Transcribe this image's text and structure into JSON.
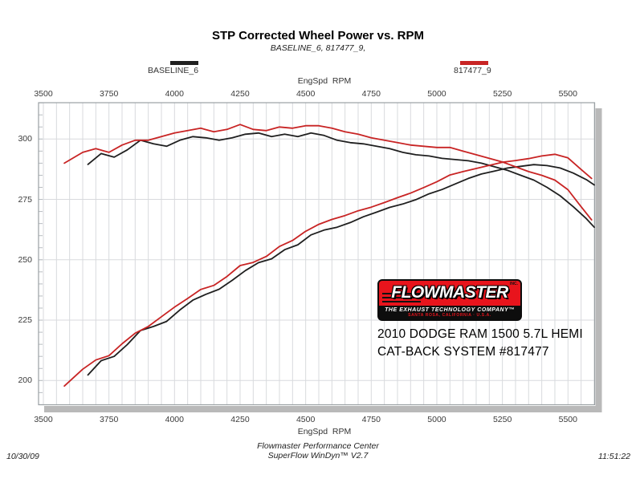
{
  "header": {
    "title": "STP Corrected Wheel Power vs. RPM",
    "subtitle": "BASELINE_6, 817477_9,"
  },
  "legend": [
    {
      "label": "BASELINE_6",
      "color": "#1f1f1f"
    },
    {
      "label": "817477_9",
      "color": "#c82424"
    }
  ],
  "axis": {
    "x_label": "EngSpd  RPM",
    "x_ticks": [
      3500,
      3750,
      4000,
      4250,
      4500,
      4750,
      5000,
      5250,
      5500
    ],
    "y_ticks": [
      200,
      225,
      250,
      275,
      300
    ]
  },
  "annotation": {
    "vehicle_line1": "2010 DODGE RAM 1500 5.7L HEMI",
    "vehicle_line2": "CAT-BACK SYSTEM #817477"
  },
  "logo": {
    "brand": "FLOWMASTER",
    "inc": "INC.",
    "tagline": "THE EXHAUST TECHNOLOGY COMPANY™",
    "location": "SANTA ROSA, CALIFORNIA  ·  U.S.A.",
    "red": "#e8141c"
  },
  "footer": {
    "line1": "Flowmaster Performance Center",
    "line2": "SuperFlow WinDyn™ V2.7",
    "date": "10/30/09",
    "time": "11:51:22"
  },
  "chart_data": {
    "type": "line",
    "title": "STP Corrected Wheel Power vs. RPM",
    "xlabel": "EngSpd RPM",
    "ylabel": "",
    "x_range": [
      3482,
      5602
    ],
    "y_range": [
      190,
      315
    ],
    "grid": {
      "x_start": 3500,
      "x_end": 5600,
      "x_step": 50,
      "y_step": 25,
      "y_minor_step": 5
    },
    "legend_position": "top",
    "colors": {
      "grid": "#d8dadd",
      "box": "#9aa0a4",
      "shadow": "#b9b9b9"
    },
    "series": [
      {
        "name": "BASELINE_6",
        "measure": "torque",
        "color": "#1f1f1f",
        "points": [
          [
            3670,
            289.5
          ],
          [
            3720,
            294
          ],
          [
            3770,
            292.5
          ],
          [
            3820,
            295.5
          ],
          [
            3870,
            299.5
          ],
          [
            3920,
            298
          ],
          [
            3970,
            297
          ],
          [
            4020,
            299.5
          ],
          [
            4070,
            301
          ],
          [
            4120,
            300.5
          ],
          [
            4170,
            299.5
          ],
          [
            4220,
            300.5
          ],
          [
            4270,
            302
          ],
          [
            4320,
            302.5
          ],
          [
            4370,
            301
          ],
          [
            4420,
            302
          ],
          [
            4470,
            301
          ],
          [
            4520,
            302.5
          ],
          [
            4570,
            301.5
          ],
          [
            4620,
            299.5
          ],
          [
            4670,
            298.5
          ],
          [
            4720,
            298
          ],
          [
            4770,
            297
          ],
          [
            4820,
            296
          ],
          [
            4870,
            294.5
          ],
          [
            4920,
            293.5
          ],
          [
            4970,
            293
          ],
          [
            5020,
            292
          ],
          [
            5070,
            291.5
          ],
          [
            5120,
            291
          ],
          [
            5170,
            290
          ],
          [
            5220,
            288.5
          ],
          [
            5270,
            287
          ],
          [
            5320,
            285
          ],
          [
            5370,
            283
          ],
          [
            5420,
            280
          ],
          [
            5470,
            276.5
          ],
          [
            5520,
            272
          ],
          [
            5570,
            267
          ],
          [
            5600,
            263.5
          ]
        ]
      },
      {
        "name": "BASELINE_6",
        "measure": "power",
        "color": "#1f1f1f",
        "points": [
          [
            3670,
            202.3
          ],
          [
            3720,
            208.2
          ],
          [
            3770,
            210.0
          ],
          [
            3820,
            214.9
          ],
          [
            3870,
            220.7
          ],
          [
            3920,
            222.4
          ],
          [
            3970,
            224.5
          ],
          [
            4020,
            229.2
          ],
          [
            4070,
            233.3
          ],
          [
            4120,
            235.7
          ],
          [
            4170,
            237.8
          ],
          [
            4220,
            241.5
          ],
          [
            4270,
            245.5
          ],
          [
            4320,
            248.8
          ],
          [
            4370,
            250.4
          ],
          [
            4420,
            254.2
          ],
          [
            4470,
            256.2
          ],
          [
            4520,
            260.3
          ],
          [
            4570,
            262.3
          ],
          [
            4620,
            263.5
          ],
          [
            4670,
            265.4
          ],
          [
            4720,
            267.8
          ],
          [
            4770,
            269.7
          ],
          [
            4820,
            271.7
          ],
          [
            4870,
            273.1
          ],
          [
            4920,
            274.9
          ],
          [
            4970,
            277.3
          ],
          [
            5020,
            279.1
          ],
          [
            5070,
            281.4
          ],
          [
            5120,
            283.7
          ],
          [
            5170,
            285.5
          ],
          [
            5220,
            286.7
          ],
          [
            5270,
            288.0
          ],
          [
            5320,
            288.7
          ],
          [
            5370,
            289.4
          ],
          [
            5420,
            289.0
          ],
          [
            5470,
            288.0
          ],
          [
            5520,
            285.9
          ],
          [
            5570,
            283.2
          ],
          [
            5600,
            281.0
          ]
        ]
      },
      {
        "name": "817477_9",
        "measure": "torque",
        "color": "#c82424",
        "points": [
          [
            3580,
            290
          ],
          [
            3650,
            294.5
          ],
          [
            3700,
            296
          ],
          [
            3750,
            294.5
          ],
          [
            3800,
            297.5
          ],
          [
            3850,
            299.5
          ],
          [
            3900,
            299.5
          ],
          [
            3950,
            301
          ],
          [
            4000,
            302.5
          ],
          [
            4050,
            303.5
          ],
          [
            4100,
            304.5
          ],
          [
            4150,
            303
          ],
          [
            4200,
            304
          ],
          [
            4250,
            306
          ],
          [
            4300,
            304
          ],
          [
            4350,
            303.5
          ],
          [
            4400,
            305
          ],
          [
            4450,
            304.5
          ],
          [
            4500,
            305.5
          ],
          [
            4550,
            305.5
          ],
          [
            4600,
            304.5
          ],
          [
            4650,
            303
          ],
          [
            4700,
            302
          ],
          [
            4750,
            300.5
          ],
          [
            4800,
            299.5
          ],
          [
            4850,
            298.5
          ],
          [
            4900,
            297.5
          ],
          [
            4950,
            297
          ],
          [
            5000,
            296.5
          ],
          [
            5050,
            296.5
          ],
          [
            5100,
            295
          ],
          [
            5150,
            293.5
          ],
          [
            5200,
            292
          ],
          [
            5250,
            290.5
          ],
          [
            5300,
            288.5
          ],
          [
            5350,
            286.5
          ],
          [
            5400,
            285
          ],
          [
            5450,
            283
          ],
          [
            5500,
            279
          ],
          [
            5550,
            272
          ],
          [
            5590,
            266.5
          ]
        ]
      },
      {
        "name": "817477_9",
        "measure": "power",
        "color": "#c82424",
        "points": [
          [
            3580,
            197.7
          ],
          [
            3650,
            204.7
          ],
          [
            3700,
            208.5
          ],
          [
            3750,
            210.3
          ],
          [
            3800,
            215.2
          ],
          [
            3850,
            219.6
          ],
          [
            3900,
            222.4
          ],
          [
            3950,
            226.4
          ],
          [
            4000,
            230.4
          ],
          [
            4050,
            234.0
          ],
          [
            4100,
            237.7
          ],
          [
            4150,
            239.4
          ],
          [
            4200,
            243.1
          ],
          [
            4250,
            247.6
          ],
          [
            4300,
            248.9
          ],
          [
            4350,
            251.4
          ],
          [
            4400,
            255.5
          ],
          [
            4450,
            258.0
          ],
          [
            4500,
            261.8
          ],
          [
            4550,
            264.7
          ],
          [
            4600,
            266.7
          ],
          [
            4650,
            268.3
          ],
          [
            4700,
            270.3
          ],
          [
            4750,
            271.8
          ],
          [
            4800,
            273.7
          ],
          [
            4850,
            275.7
          ],
          [
            4900,
            277.6
          ],
          [
            4950,
            279.9
          ],
          [
            5000,
            282.3
          ],
          [
            5050,
            285.1
          ],
          [
            5100,
            286.5
          ],
          [
            5150,
            287.8
          ],
          [
            5200,
            289.1
          ],
          [
            5250,
            290.4
          ],
          [
            5300,
            291.1
          ],
          [
            5350,
            291.9
          ],
          [
            5400,
            293.0
          ],
          [
            5450,
            293.7
          ],
          [
            5500,
            292.2
          ],
          [
            5550,
            287.4
          ],
          [
            5590,
            283.7
          ]
        ]
      }
    ]
  }
}
